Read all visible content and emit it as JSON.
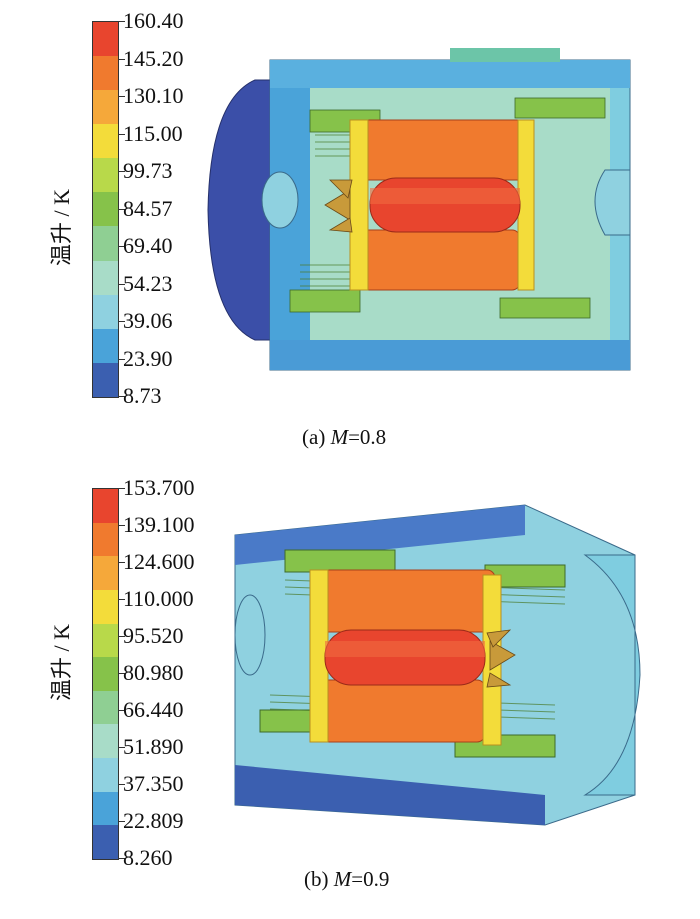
{
  "figure_a": {
    "axis_label": "温升 / K",
    "ticks": [
      "160.40",
      "145.20",
      "130.10",
      "115.00",
      "99.73",
      "84.57",
      "69.40",
      "54.23",
      "39.06",
      "23.90",
      "8.73"
    ],
    "colors": [
      "#e8452e",
      "#f07a2e",
      "#f5a83a",
      "#f3dc3a",
      "#b8d94a",
      "#86c24a",
      "#8fcf93",
      "#a8dcc8",
      "#8fd1e0",
      "#4aa3d9",
      "#3b5fb0"
    ],
    "caption_prefix": "(a)  ",
    "caption_var": "M",
    "caption_value": "=0.8"
  },
  "figure_b": {
    "axis_label": "温升 / K",
    "ticks": [
      "153.700",
      "139.100",
      "124.600",
      "110.000",
      "95.520",
      "80.980",
      "66.440",
      "51.890",
      "37.350",
      "22.809",
      "8.260"
    ],
    "colors": [
      "#e8452e",
      "#f07a2e",
      "#f5a83a",
      "#f3dc3a",
      "#b8d94a",
      "#86c24a",
      "#8fcf93",
      "#a8dcc8",
      "#8fd1e0",
      "#4aa3d9",
      "#3b5fb0"
    ],
    "caption_prefix": "(b)  ",
    "caption_var": "M",
    "caption_value": "=0.9"
  }
}
